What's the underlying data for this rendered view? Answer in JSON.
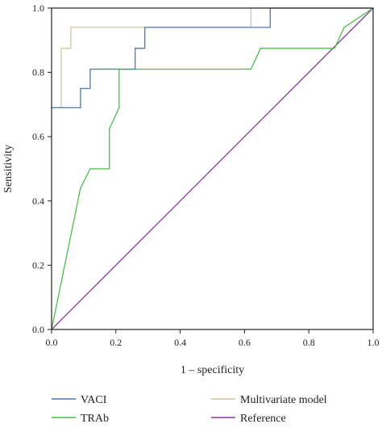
{
  "chart_data": {
    "type": "line",
    "title": "",
    "xlabel": "1 – specificity",
    "ylabel": "Sensitivity",
    "xlim": [
      0,
      1
    ],
    "ylim": [
      0,
      1
    ],
    "xticks": [
      "0.0",
      "0.2",
      "0.4",
      "0.6",
      "0.8",
      "1.0"
    ],
    "yticks": [
      "0.0",
      "0.2",
      "0.4",
      "0.6",
      "0.8",
      "1.0"
    ],
    "grid": false,
    "legend_position": "bottom",
    "series": [
      {
        "name": "VACI",
        "color": "#4a78b8",
        "x": [
          0,
          0.03,
          0.03,
          0.09,
          0.09,
          0.12,
          0.12,
          0.26,
          0.26,
          0.29,
          0.29,
          0.62,
          0.62,
          0.68,
          0.68,
          1.0
        ],
        "y": [
          0.69,
          0.69,
          0.69,
          0.69,
          0.75,
          0.75,
          0.81,
          0.81,
          0.875,
          0.875,
          0.94,
          0.94,
          0.94,
          0.94,
          1.0,
          1.0
        ]
      },
      {
        "name": "Multivariate model",
        "color": "#d2c6a0",
        "x": [
          0,
          0.03,
          0.03,
          0.06,
          0.06,
          0.62,
          0.62,
          1.0
        ],
        "y": [
          0.69,
          0.69,
          0.875,
          0.875,
          0.94,
          0.94,
          1.0,
          1.0
        ]
      },
      {
        "name": "TRAb",
        "color": "#4cbd4c",
        "x": [
          0,
          0.09,
          0.12,
          0.18,
          0.18,
          0.21,
          0.21,
          0.62,
          0.65,
          0.88,
          0.91,
          1.0
        ],
        "y": [
          0,
          0.44,
          0.5,
          0.5,
          0.625,
          0.69,
          0.81,
          0.81,
          0.875,
          0.875,
          0.94,
          1.0
        ]
      },
      {
        "name": "Reference",
        "color": "#8e3a9e",
        "x": [
          0,
          1
        ],
        "y": [
          0,
          1
        ]
      }
    ]
  }
}
